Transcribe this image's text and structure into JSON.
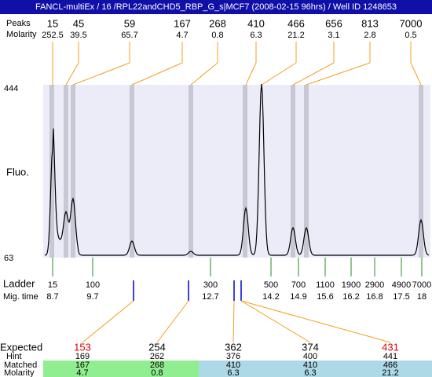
{
  "title": "FANCL-multiEx / 16 /RPL22andCHD5_RBP_G_s|MCF7 (2008-02-15 96hrs) / Well ID 1248653",
  "peaks_label": "Peaks",
  "peaks_molarity_label": "Molarity",
  "peaks": [
    {
      "size": "15",
      "molarity": "252.5"
    },
    {
      "size": "45",
      "molarity": "39.5"
    },
    {
      "size": "59",
      "molarity": "65.7"
    },
    {
      "size": "167",
      "molarity": "4.7"
    },
    {
      "size": "268",
      "molarity": "0.8"
    },
    {
      "size": "410",
      "molarity": "6.3"
    },
    {
      "size": "466",
      "molarity": "21.2"
    },
    {
      "size": "656",
      "molarity": "3.1"
    },
    {
      "size": "813",
      "molarity": "2.8"
    },
    {
      "size": "7000",
      "molarity": "0.5"
    }
  ],
  "y_axis_label": "Fluo.",
  "yticks": [
    "444",
    "63"
  ],
  "ladder_label": "Ladder",
  "migtime_label": "Mig. time",
  "ladder": [
    {
      "size": "15",
      "time": "8.7"
    },
    {
      "size": "100",
      "time": "9.7"
    },
    {
      "size": "300",
      "time": "12.7"
    },
    {
      "size": "500",
      "time": "14.2"
    },
    {
      "size": "700",
      "time": "14.9"
    },
    {
      "size": "1100",
      "time": "15.6"
    },
    {
      "size": "1900",
      "time": "16.2"
    },
    {
      "size": "2900",
      "time": "16.8"
    },
    {
      "size": "4900",
      "time": "17.5"
    },
    {
      "size": "7000",
      "time": "18"
    }
  ],
  "table": {
    "labels": [
      "Expected",
      "Hint",
      "Matched",
      "Molarity"
    ],
    "columns": [
      {
        "expected": "153",
        "color": "#e00000",
        "hint": "169",
        "matched": "167",
        "molarity": "4.7"
      },
      {
        "expected": "254",
        "color": "#000000",
        "hint": "262",
        "matched": "268",
        "molarity": "0.8"
      },
      {
        "expected": "362",
        "color": "#000000",
        "hint": "376",
        "matched": "410",
        "molarity": "6.3"
      },
      {
        "expected": "374",
        "color": "#000000",
        "hint": "400",
        "matched": "410",
        "molarity": "6.3"
      },
      {
        "expected": "431",
        "color": "#e00000",
        "hint": "441",
        "matched": "466",
        "molarity": "21.2"
      }
    ]
  }
}
